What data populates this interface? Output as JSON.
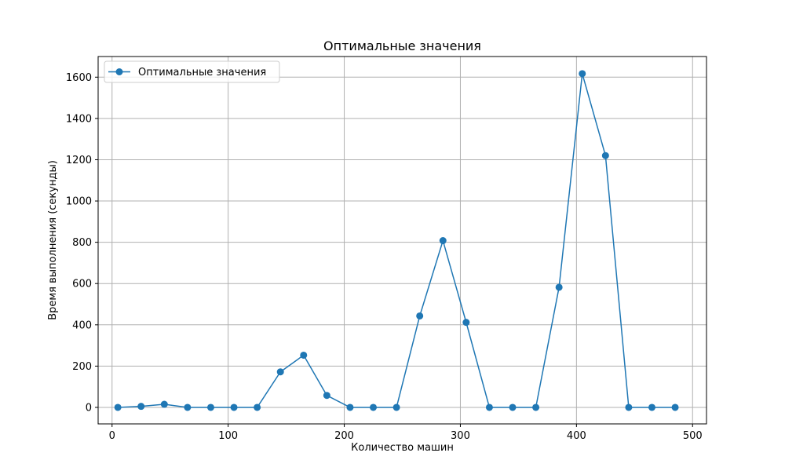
{
  "chart_data": {
    "type": "line",
    "title": "Оптимальные значения",
    "xlabel": "Количество машин",
    "ylabel": "Время выполнения (секунды)",
    "xlim": [
      -12,
      512
    ],
    "ylim": [
      -80,
      1700
    ],
    "xticks": [
      0,
      100,
      200,
      300,
      400,
      500
    ],
    "yticks": [
      0,
      200,
      400,
      600,
      800,
      1000,
      1200,
      1400,
      1600
    ],
    "grid": true,
    "legend_position": "top-left",
    "series": [
      {
        "name": "Оптимальные значения",
        "color": "#1f77b4",
        "marker": "circle",
        "x": [
          5,
          25,
          45,
          65,
          85,
          105,
          125,
          145,
          165,
          185,
          205,
          225,
          245,
          265,
          285,
          305,
          325,
          345,
          365,
          385,
          405,
          425,
          445,
          465,
          485
        ],
        "y": [
          0,
          5,
          15,
          0,
          0,
          0,
          0,
          172,
          253,
          58,
          0,
          0,
          0,
          443,
          808,
          412,
          0,
          0,
          0,
          582,
          1617,
          1220,
          0,
          0,
          0
        ]
      }
    ]
  }
}
